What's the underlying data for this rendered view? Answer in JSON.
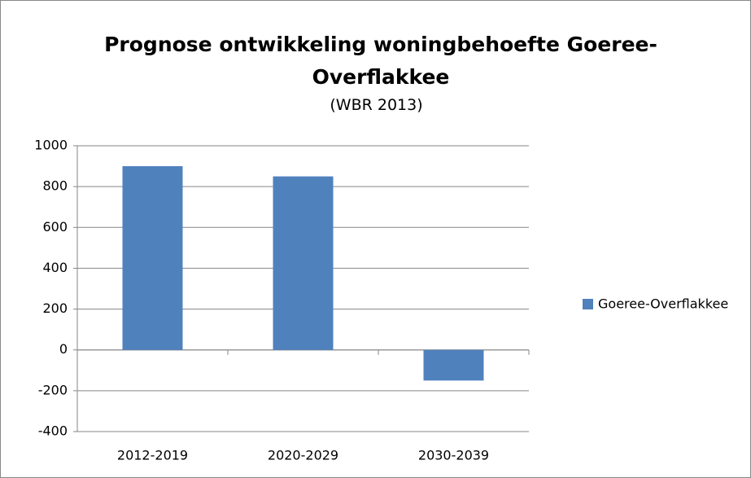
{
  "chart_data": {
    "type": "bar",
    "title": "Prognose ontwikkeling woningbehoefte Goeree-Overflakkee",
    "subtitle": "(WBR 2013)",
    "categories": [
      "2012-2019",
      "2020-2029",
      "2030-2039"
    ],
    "series": [
      {
        "name": "Goeree-Overflakkee",
        "color": "#4f81bd",
        "values": [
          900,
          850,
          -150
        ]
      }
    ],
    "ylim": [
      -400,
      1000
    ],
    "yticks": [
      -400,
      -200,
      0,
      200,
      400,
      600,
      800,
      1000
    ],
    "grid": true,
    "legend": "right"
  }
}
